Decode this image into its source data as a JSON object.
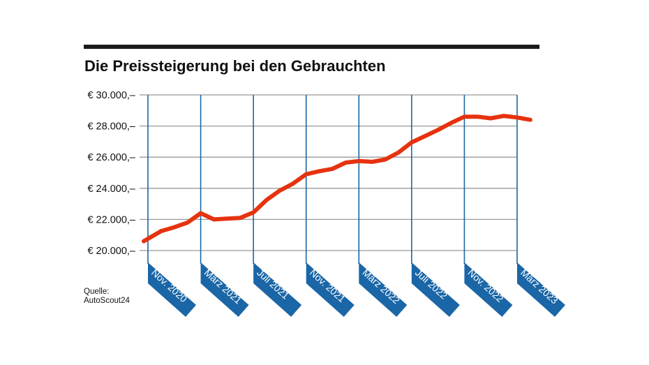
{
  "chart_data": {
    "type": "line",
    "title": "Die Preissteigerung bei den Gebrauchten",
    "source": [
      "Quelle:",
      "AutoScout24"
    ],
    "ylim": [
      20000,
      30000
    ],
    "yticks": [
      20000,
      22000,
      24000,
      26000,
      28000,
      30000
    ],
    "ytick_labels": [
      "€ 20.000,–",
      "€ 22.000,–",
      "€ 24.000,–",
      "€ 26.000,–",
      "€ 28.000,–",
      "€ 30.000,–"
    ],
    "xticks": [
      "2020-11",
      "2021-03",
      "2021-07",
      "2021-11",
      "2022-03",
      "2022-07",
      "2022-11",
      "2023-03"
    ],
    "xtick_labels": [
      "Nov. 2020",
      "März 2021",
      "Juli 2021",
      "Nov. 2021",
      "März 2022",
      "Juli 2022",
      "Nov. 2022",
      "März 2023"
    ],
    "grid": true,
    "colors": {
      "line": "#e5330f",
      "axis_markers": "#1a66a6",
      "grid": "#9a9a9a",
      "rule": "#1a1a1a"
    },
    "series": [
      {
        "x": [
          "2020-11",
          "2020-12",
          "2021-01",
          "2021-02",
          "2021-03",
          "2021-04",
          "2021-05",
          "2021-06",
          "2021-07",
          "2021-08",
          "2021-09",
          "2021-10",
          "2021-11",
          "2021-12",
          "2022-01",
          "2022-02",
          "2022-03",
          "2022-04",
          "2022-05",
          "2022-06",
          "2022-07",
          "2022-08",
          "2022-09",
          "2022-10",
          "2022-11",
          "2022-12",
          "2023-01",
          "2023-02",
          "2023-03",
          "2023-04"
        ],
        "values": [
          20600,
          21250,
          21500,
          21800,
          22400,
          22000,
          22050,
          22100,
          22450,
          23250,
          23850,
          24300,
          24900,
          25100,
          25250,
          25650,
          25750,
          25700,
          25850,
          26300,
          26950,
          27350,
          27750,
          28200,
          28600,
          28600,
          28500,
          28650,
          28550,
          28400
        ]
      }
    ]
  }
}
